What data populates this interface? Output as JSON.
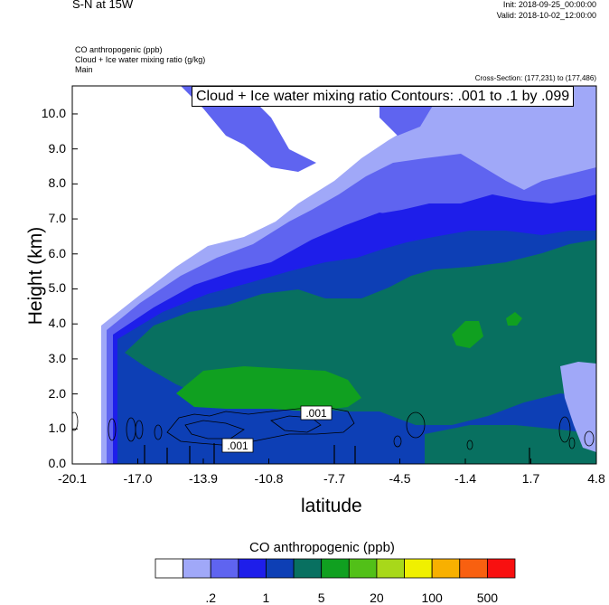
{
  "header": {
    "title": "S-N at 15W",
    "init": "Init: 2018-09-25_00:00:00",
    "valid": "Valid: 2018-10-02_12:00:00",
    "fields": [
      "CO anthropogenic   (ppb)",
      "Cloud + Ice water mixing ratio   (g/kg)",
      "Main"
    ],
    "cross_section": "Cross-Section: (177,231) to (177,486)",
    "contour_label": "Cloud + Ice water mixing ratio Contours: .001 to .1 by .099"
  },
  "chart_data": {
    "type": "heatmap",
    "xlabel": "latitude",
    "ylabel": "Height (km)",
    "xlim": [
      -20.1,
      4.8
    ],
    "ylim": [
      0.0,
      10.8
    ],
    "x_ticks": [
      "-20.1",
      "-17.0",
      "-13.9",
      "-10.8",
      "-7.7",
      "-4.5",
      "-1.4",
      "1.7",
      "4.8"
    ],
    "y_ticks": [
      "0.0",
      "1.0",
      "2.0",
      "3.0",
      "4.0",
      "5.0",
      "6.0",
      "7.0",
      "8.0",
      "9.0",
      "10.0"
    ],
    "contour_labels": [
      ".001",
      ".001"
    ],
    "colorbar": {
      "title": "CO anthropogenic  (ppb)",
      "colors": [
        "#ffffff",
        "#a0a8f8",
        "#5f64f0",
        "#1e1eea",
        "#0d3fb5",
        "#087060",
        "#10a020",
        "#52c018",
        "#a8d81a",
        "#f0f000",
        "#f8b000",
        "#f86010",
        "#f81010"
      ],
      "labels": [
        ".2",
        "1",
        "5",
        "20",
        "100",
        "500"
      ]
    }
  }
}
